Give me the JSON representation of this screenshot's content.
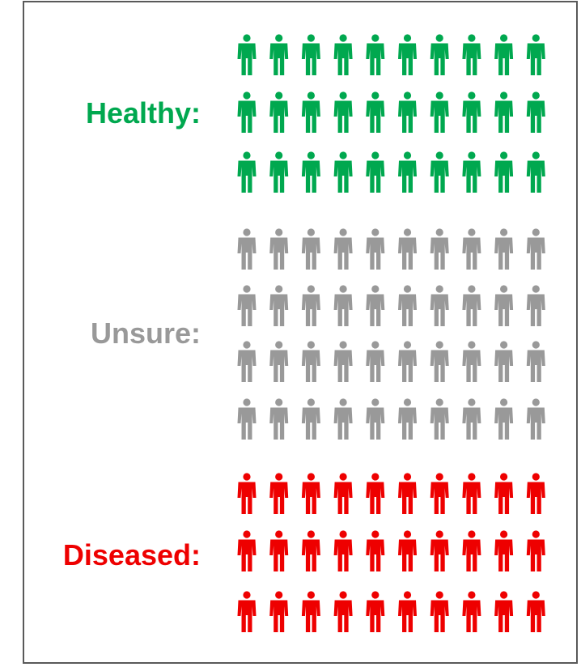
{
  "chart_data": {
    "type": "pictograph",
    "icon": "person-icon",
    "icons_per_row": 10,
    "groups": [
      {
        "label": "Healthy:",
        "rows": 3,
        "count": 30,
        "color": "#00a84f"
      },
      {
        "label": "Unsure:",
        "rows": 4,
        "count": 40,
        "color": "#999999"
      },
      {
        "label": "Diseased:",
        "rows": 3,
        "count": 30,
        "color": "#ee0000"
      }
    ]
  }
}
